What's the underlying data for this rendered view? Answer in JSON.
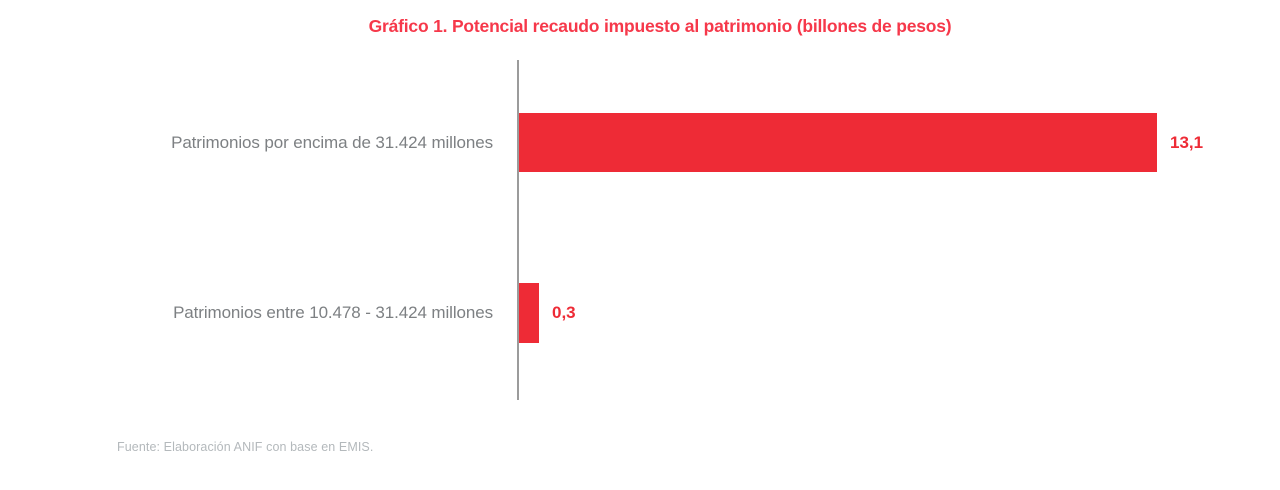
{
  "title": "Gráfico 1. Potencial recaudo impuesto al patrimonio (billones de pesos)",
  "source": "Fuente: Elaboración ANIF con base en EMIS.",
  "colors": {
    "title_red": "#f6384a",
    "bar_red": "#ee2b36",
    "value_red": "#ee2b36",
    "label_gray": "#7d8083",
    "source_gray": "#b4b9bc",
    "axis_gray": "#9b9b9b",
    "background": "#ffffff"
  },
  "chart_data": {
    "type": "bar",
    "orientation": "horizontal",
    "title": "Gráfico 1. Potencial recaudo impuesto al patrimonio (billones de pesos)",
    "categories": [
      "Patrimonios por encima de 31.424 millones",
      "Patrimonios entre 10.478 - 31.424 millones"
    ],
    "values": [
      13.1,
      0.3
    ],
    "value_labels": [
      "13,1",
      "0,3"
    ],
    "xlabel": "",
    "ylabel": "",
    "xlim": [
      0,
      13.1
    ],
    "grid": false,
    "legend": null,
    "bar_color": "#ee2b36",
    "value_label_position": "end-of-bar"
  }
}
